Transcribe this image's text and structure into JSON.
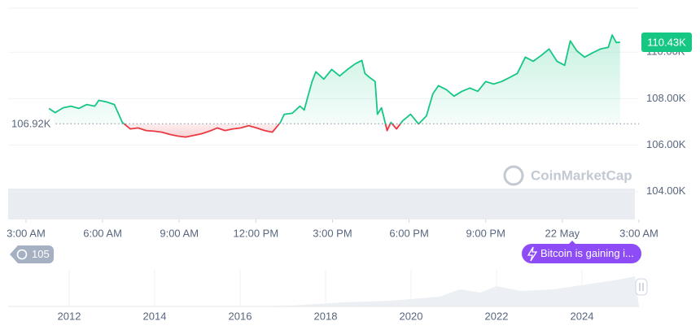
{
  "chart_data": {
    "type": "line",
    "x": [
      0.9,
      1.14,
      1.45,
      1.76,
      2.07,
      2.38,
      2.69,
      2.85,
      3.15,
      3.46,
      3.77,
      4.08,
      4.39,
      4.7,
      5.01,
      5.32,
      5.63,
      5.94,
      6.25,
      6.56,
      6.87,
      7.18,
      7.49,
      7.79,
      8.1,
      8.41,
      8.72,
      9.03,
      9.34,
      9.65,
      9.96,
      10.11,
      10.42,
      10.73,
      10.89,
      11.04,
      11.2,
      11.35,
      11.66,
      11.97,
      12.28,
      12.59,
      12.9,
      13.15,
      13.27,
      13.46,
      13.67,
      13.76,
      13.92,
      14.14,
      14.29,
      14.51,
      14.75,
      15.06,
      15.37,
      15.68,
      15.93,
      16.15,
      16.46,
      16.76,
      17.07,
      17.38,
      17.69,
      18.0,
      18.31,
      18.62,
      18.93,
      19.24,
      19.55,
      19.86,
      20.17,
      20.48,
      20.79,
      21.09,
      21.31,
      21.56,
      21.87,
      22.18,
      22.49,
      22.8,
      22.95,
      23.11,
      23.26
    ],
    "values": [
      107580,
      107400,
      107610,
      107680,
      107580,
      107750,
      107680,
      107930,
      107860,
      107750,
      106980,
      106700,
      106740,
      106630,
      106600,
      106560,
      106460,
      106390,
      106350,
      106420,
      106490,
      106600,
      106740,
      106630,
      106700,
      106740,
      106840,
      106740,
      106630,
      106560,
      106980,
      107330,
      107370,
      107680,
      107510,
      108110,
      108740,
      109160,
      108840,
      109260,
      108980,
      109260,
      109510,
      109650,
      109090,
      108910,
      108740,
      107330,
      107610,
      106630,
      106980,
      106700,
      107050,
      107330,
      106910,
      107260,
      108210,
      108560,
      108390,
      108110,
      108320,
      108460,
      108320,
      108740,
      108630,
      108740,
      108910,
      109090,
      109790,
      109610,
      109860,
      110140,
      109610,
      109440,
      110490,
      110070,
      109790,
      109970,
      110140,
      110210,
      110740,
      110420,
      110430
    ],
    "up_color": "#16c784",
    "down_color": "#ea3943",
    "baseline": {
      "value": 106920,
      "label": "106.92K"
    },
    "current": {
      "value": 110430,
      "label": "110.43K"
    },
    "xlim": [
      -0.7,
      24
    ],
    "ylim": [
      102800,
      111900
    ],
    "xticks": [
      {
        "value": 0,
        "label": "3:00 AM"
      },
      {
        "value": 3,
        "label": "6:00 AM"
      },
      {
        "value": 6,
        "label": "9:00 AM"
      },
      {
        "value": 9,
        "label": "12:00 PM"
      },
      {
        "value": 12,
        "label": "3:00 PM"
      },
      {
        "value": 15,
        "label": "6:00 PM"
      },
      {
        "value": 18,
        "label": "9:00 PM"
      },
      {
        "value": 21,
        "label": "22 May"
      },
      {
        "value": 24,
        "label": "3:00 AM"
      }
    ],
    "yticks": [
      {
        "value": 104000,
        "label": "104.00K"
      },
      {
        "value": 106000,
        "label": "106.00K"
      },
      {
        "value": 108000,
        "label": "108.00K"
      },
      {
        "value": 110000,
        "label": "110.00K"
      }
    ],
    "grid": true,
    "watermark": "CoinMarketCap",
    "history_badge": "105",
    "news_badge": "Bitcoin is gaining i...",
    "navigator_years": [
      "2012",
      "2014",
      "2016",
      "2018",
      "2020",
      "2022",
      "2024"
    ]
  }
}
